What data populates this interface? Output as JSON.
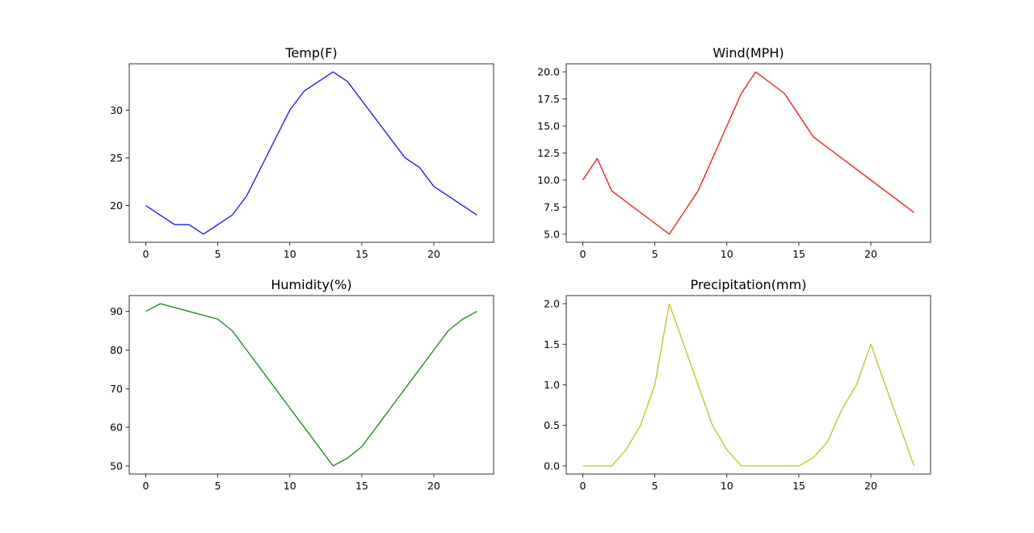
{
  "chart_data": [
    {
      "type": "line",
      "title": "Temp(F)",
      "color": "#0000ff",
      "x": [
        0,
        1,
        2,
        3,
        4,
        5,
        6,
        7,
        8,
        9,
        10,
        11,
        12,
        13,
        14,
        15,
        16,
        17,
        18,
        19,
        20,
        21,
        22,
        23
      ],
      "y": [
        20,
        19,
        18,
        18,
        17,
        18,
        19,
        21,
        24,
        27,
        30,
        32,
        33,
        34,
        33,
        31,
        29,
        27,
        25,
        24,
        22,
        21,
        20,
        19
      ],
      "xlim": [
        -1.15,
        24.15
      ],
      "ylim": [
        16.15,
        34.85
      ],
      "xticks": [
        0,
        5,
        10,
        15,
        20
      ],
      "yticks": [
        20,
        25,
        30
      ]
    },
    {
      "type": "line",
      "title": "Wind(MPH)",
      "color": "#ff0000",
      "x": [
        0,
        1,
        2,
        3,
        4,
        5,
        6,
        7,
        8,
        9,
        10,
        11,
        12,
        13,
        14,
        15,
        16,
        17,
        18,
        19,
        20,
        21,
        22,
        23
      ],
      "y": [
        10,
        12,
        9,
        8,
        7,
        6,
        5,
        7,
        9,
        12,
        15,
        18,
        20,
        19,
        18,
        16,
        14,
        13,
        12,
        11,
        10,
        9,
        8,
        7
      ],
      "xlim": [
        -1.15,
        24.15
      ],
      "ylim": [
        4.25,
        20.75
      ],
      "xticks": [
        0,
        5,
        10,
        15,
        20
      ],
      "yticks": [
        "5.0",
        "7.5",
        "10.0",
        "12.5",
        "15.0",
        "17.5",
        "20.0"
      ]
    },
    {
      "type": "line",
      "title": "Humidity(%)",
      "color": "#008000",
      "x": [
        0,
        1,
        2,
        3,
        4,
        5,
        6,
        7,
        8,
        9,
        10,
        11,
        12,
        13,
        14,
        15,
        16,
        17,
        18,
        19,
        20,
        21,
        22,
        23
      ],
      "y": [
        90,
        92,
        91,
        90,
        89,
        88,
        85,
        80,
        75,
        70,
        65,
        60,
        55,
        50,
        52,
        55,
        60,
        65,
        70,
        75,
        80,
        85,
        88,
        90
      ],
      "xlim": [
        -1.15,
        24.15
      ],
      "ylim": [
        47.9,
        94.1
      ],
      "xticks": [
        0,
        5,
        10,
        15,
        20
      ],
      "yticks": [
        50,
        60,
        70,
        80,
        90
      ]
    },
    {
      "type": "line",
      "title": "Precipitation(mm)",
      "color": "#bfbf00",
      "x": [
        0,
        1,
        2,
        3,
        4,
        5,
        6,
        7,
        8,
        9,
        10,
        11,
        12,
        13,
        14,
        15,
        16,
        17,
        18,
        19,
        20,
        21,
        22,
        23
      ],
      "y": [
        0,
        0,
        0,
        0.2,
        0.5,
        1.0,
        2.0,
        1.5,
        1.0,
        0.5,
        0.2,
        0,
        0,
        0,
        0,
        0,
        0.1,
        0.3,
        0.7,
        1.0,
        1.5,
        1.0,
        0.5,
        0
      ],
      "xlim": [
        -1.15,
        24.15
      ],
      "ylim": [
        -0.1,
        2.1
      ],
      "xticks": [
        0,
        5,
        10,
        15,
        20
      ],
      "yticks": [
        "0.0",
        "0.5",
        "1.0",
        "1.5",
        "2.0"
      ]
    }
  ]
}
